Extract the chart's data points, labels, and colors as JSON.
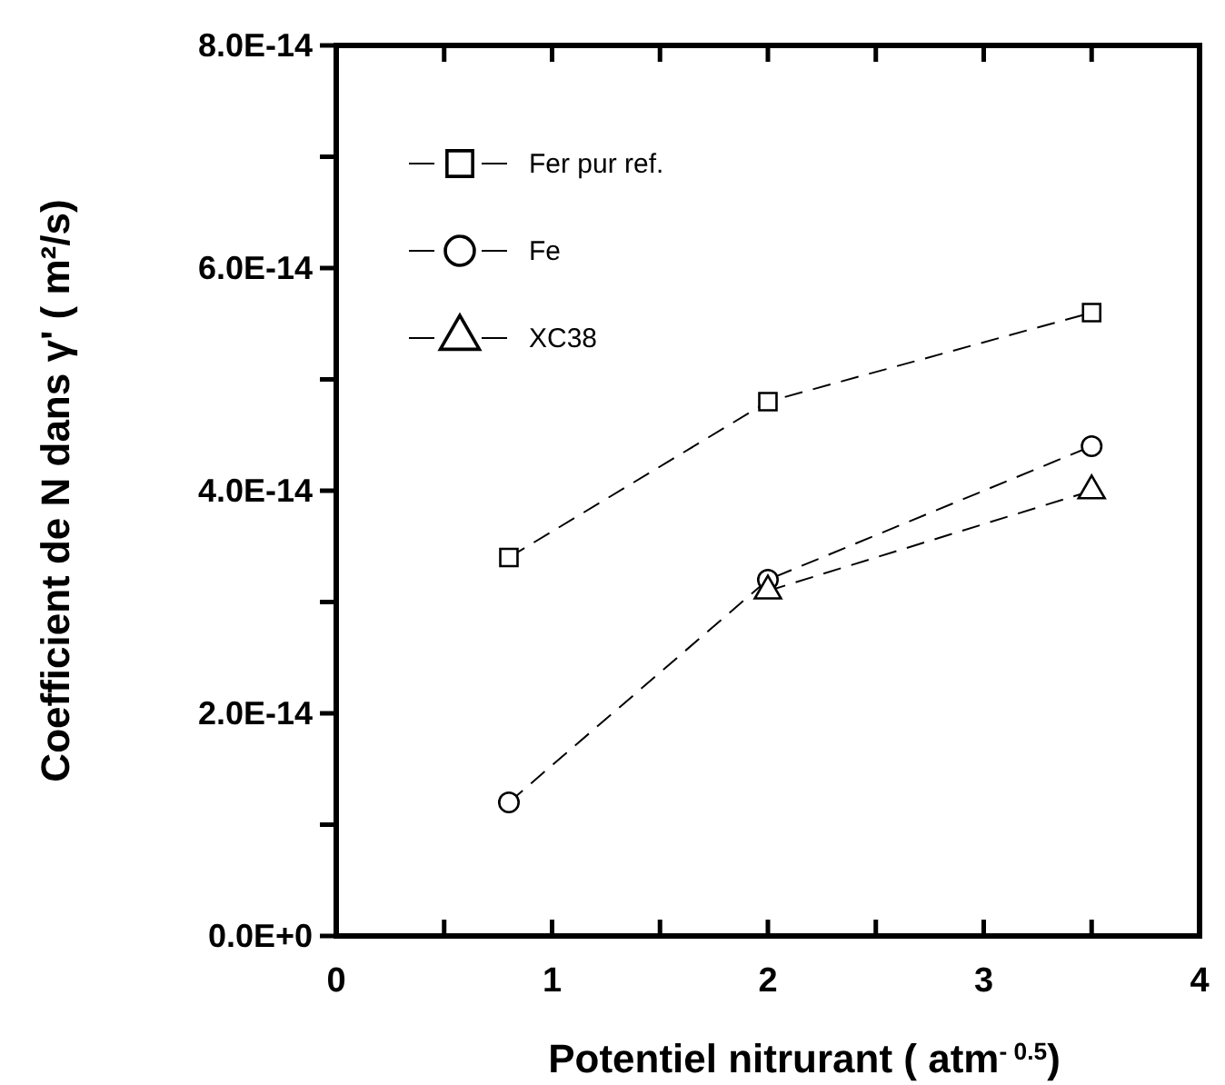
{
  "chart_data": {
    "type": "line",
    "xlabel": "Potentiel nitrurant  ( atm$^{- 0.5}$)",
    "ylabel": "Coefficient de N dans γ' (  m²/s)",
    "x": [
      0.8,
      2,
      3.5
    ],
    "series": [
      {
        "name": "Fer pur ref.",
        "color": "#000000",
        "marker": "square",
        "values": [
          3.4e-14,
          4.8e-14,
          5.6e-14
        ]
      },
      {
        "name": "Fe",
        "color": "#000000",
        "marker": "circle",
        "values": [
          1.2e-14,
          3.2e-14,
          4.4e-14
        ]
      },
      {
        "name": "XC38",
        "color": "#000000",
        "marker": "triangle",
        "values": [
          null,
          3.1e-14,
          4e-14
        ]
      }
    ],
    "xlim": [
      0,
      4
    ],
    "xticks": [
      0,
      {
        "value": 0.5,
        "label": null
      },
      1,
      {
        "value": 1.5,
        "label": null
      },
      2,
      {
        "value": 2.5,
        "label": null
      },
      3,
      {
        "value": 3.5,
        "label": null
      },
      4
    ],
    "ylim": [
      0,
      8e-14
    ],
    "yticks": [
      {
        "value": 0,
        "label": "0.0E+0"
      },
      {
        "value": 1e-14,
        "label": null
      },
      {
        "value": 2e-14,
        "label": "2.0E-14"
      },
      {
        "value": 3e-14,
        "label": null
      },
      {
        "value": 4e-14,
        "label": "4.0E-14"
      },
      {
        "value": 5e-14,
        "label": null
      },
      {
        "value": 6e-14,
        "label": "6.0E-14"
      },
      {
        "value": 7e-14,
        "label": null
      },
      {
        "value": 8e-14,
        "label": "8.0E-14"
      }
    ],
    "line_style": "dashed",
    "grid": false,
    "legend": "top left"
  }
}
